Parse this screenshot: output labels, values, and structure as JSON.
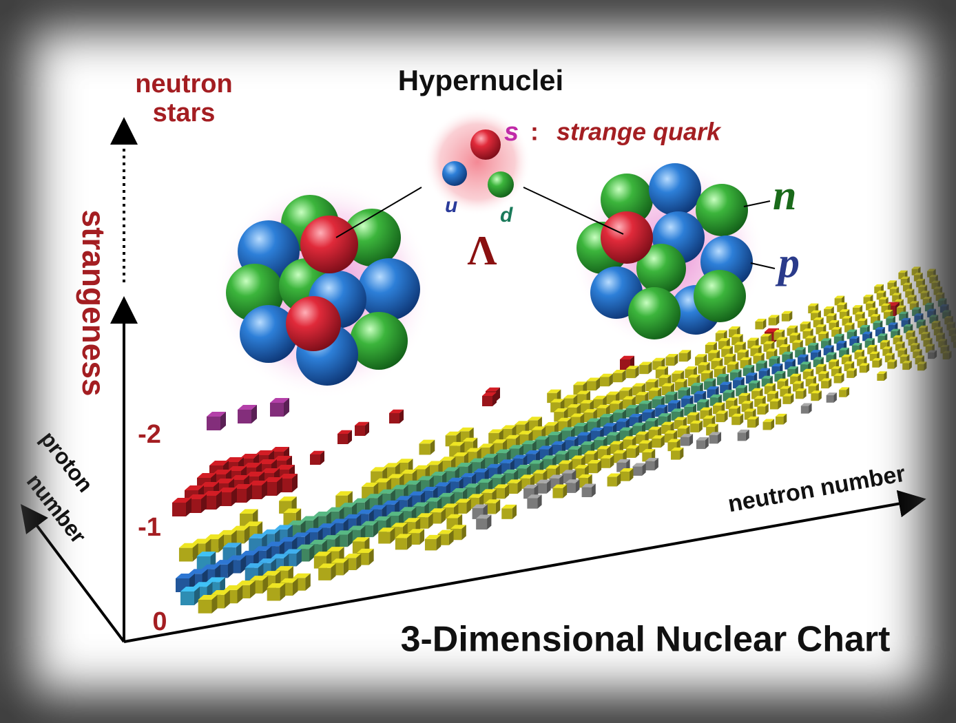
{
  "title": "Hypernuclei",
  "corner_label": [
    "neutron",
    "stars"
  ],
  "quark": {
    "s": "s",
    "separator": ":",
    "s_name": "strange quark",
    "u": "u",
    "d": "d",
    "particle": "Λ"
  },
  "nucleons": {
    "n": "n",
    "p": "p"
  },
  "axes": {
    "vertical": "strangeness",
    "strangeness_levels": [
      "0",
      "-1",
      "-2"
    ],
    "depth": [
      "proton",
      "number"
    ],
    "horizontal": "neutron number"
  },
  "caption": "3-Dimensional Nuclear Chart"
}
